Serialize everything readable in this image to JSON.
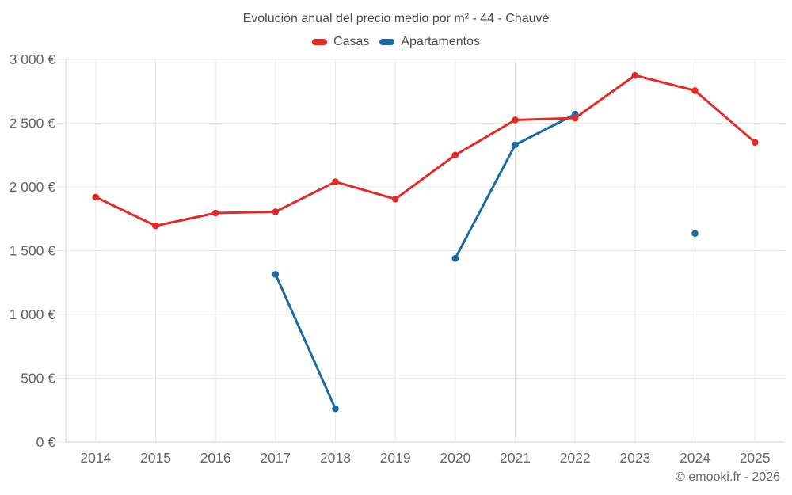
{
  "header": {
    "title": "Evolución anual del precio medio por m² - 44 - Chauvé"
  },
  "legend": {
    "items": [
      {
        "label": "Casas",
        "color": "#e32a26"
      },
      {
        "label": "Apartamentos",
        "color": "#1b6aa4"
      }
    ]
  },
  "footer": {
    "attribution": "© emooki.fr - 2026"
  },
  "colors": {
    "grid": "#e9e9e9",
    "axis": "#d2d2d2",
    "tick_text": "#666666",
    "title_text": "#4c4c4c",
    "background": "#ffffff",
    "casas": "#e32a26",
    "apartamentos": "#1b6aa4"
  },
  "chart_data": {
    "type": "line",
    "title": "Evolución anual del precio medio por m² - 44 - Chauvé",
    "xlabel": "",
    "ylabel": "",
    "x": [
      "2014",
      "2015",
      "2016",
      "2017",
      "2018",
      "2019",
      "2020",
      "2021",
      "2022",
      "2023",
      "2024",
      "2025"
    ],
    "series": [
      {
        "name": "Casas",
        "color": "#e32a26",
        "values": [
          1920,
          1695,
          1795,
          1805,
          2040,
          1905,
          2250,
          2525,
          2540,
          2875,
          2755,
          2350
        ]
      },
      {
        "name": "Apartamentos",
        "color": "#1b6aa4",
        "values": [
          null,
          null,
          null,
          1315,
          260,
          null,
          1440,
          2330,
          2570,
          null,
          1635,
          null
        ]
      }
    ],
    "ylim": [
      0,
      3000
    ],
    "yticks": [
      0,
      500,
      1000,
      1500,
      2000,
      2500,
      3000
    ],
    "ytick_labels": [
      "0 €",
      "500 €",
      "1 000 €",
      "1 500 €",
      "2 000 €",
      "2 500 €",
      "3 000 €"
    ],
    "grid": true,
    "legend_position": "top",
    "marker": "circle",
    "gaps_note": "null = no data point for that year"
  }
}
